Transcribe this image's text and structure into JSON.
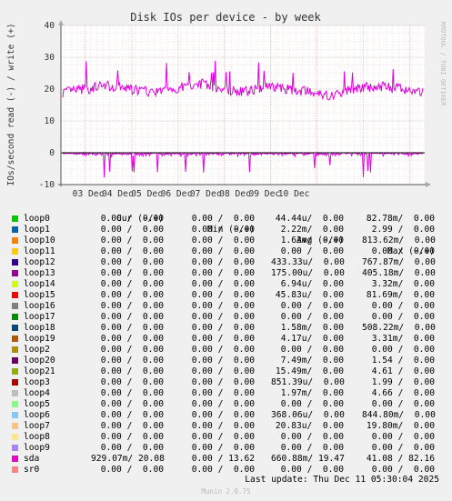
{
  "chart_data": {
    "type": "line",
    "title": "Disk IOs per device - by week",
    "ylabel": "IOs/second read (-) / write (+)",
    "side_label": "RRDTOOL / TOBI OETIKER",
    "ylim": [
      -10,
      40
    ],
    "yticks": [
      -10,
      0,
      10,
      20,
      30,
      40
    ],
    "xticks": [
      "03 Dec",
      "04 Dec",
      "05 Dec",
      "06 Dec",
      "07 Dec",
      "08 Dec",
      "09 Dec",
      "10 Dec"
    ],
    "series": [
      {
        "name": "sda",
        "direction": "write",
        "color": "#e000e0",
        "typical_values": [
          19,
          20,
          21,
          20,
          19,
          20,
          22,
          20,
          19,
          21,
          20,
          19,
          18,
          20,
          21,
          20,
          19
        ],
        "peaks": [
          29,
          27,
          26,
          26,
          29,
          27,
          26
        ]
      },
      {
        "name": "sda",
        "direction": "read",
        "color": "#e000e0",
        "typical_values": [
          -0.5,
          -1,
          -0.3,
          -0.8,
          -0.2,
          -1.2,
          -0.4
        ],
        "troughs": [
          -7,
          -8,
          -9,
          -5,
          -6,
          -7,
          -8
        ]
      }
    ]
  },
  "legend": {
    "header": {
      "cur": "Cur (-/+)",
      "min": "Min (-/+)",
      "avg": "Avg (-/+)",
      "max": "Max (-/+)"
    },
    "rows": [
      {
        "name": "loop0",
        "color": "#00cc00",
        "cur": "0.00 /  0.00",
        "min": "0.00 /  0.00",
        "avg": "44.44u/  0.00",
        "max": "82.78m/  0.00"
      },
      {
        "name": "loop1",
        "color": "#0066b3",
        "cur": "0.00 /  0.00",
        "min": "0.00 /  0.00",
        "avg": "2.22m/  0.00",
        "max": "2.99 /  0.00"
      },
      {
        "name": "loop10",
        "color": "#ff8000",
        "cur": "0.00 /  0.00",
        "min": "0.00 /  0.00",
        "avg": "1.63m/  0.00",
        "max": "813.62m/  0.00"
      },
      {
        "name": "loop11",
        "color": "#ffcc00",
        "cur": "0.00 /  0.00",
        "min": "0.00 /  0.00",
        "avg": "0.00 /  0.00",
        "max": "0.00 /  0.00"
      },
      {
        "name": "loop12",
        "color": "#330099",
        "cur": "0.00 /  0.00",
        "min": "0.00 /  0.00",
        "avg": "433.33u/  0.00",
        "max": "767.87m/  0.00"
      },
      {
        "name": "loop13",
        "color": "#990099",
        "cur": "0.00 /  0.00",
        "min": "0.00 /  0.00",
        "avg": "175.00u/  0.00",
        "max": "405.18m/  0.00"
      },
      {
        "name": "loop14",
        "color": "#ccff00",
        "cur": "0.00 /  0.00",
        "min": "0.00 /  0.00",
        "avg": "6.94u/  0.00",
        "max": "3.32m/  0.00"
      },
      {
        "name": "loop15",
        "color": "#ff0000",
        "cur": "0.00 /  0.00",
        "min": "0.00 /  0.00",
        "avg": "45.83u/  0.00",
        "max": "81.69m/  0.00"
      },
      {
        "name": "loop16",
        "color": "#808080",
        "cur": "0.00 /  0.00",
        "min": "0.00 /  0.00",
        "avg": "0.00 /  0.00",
        "max": "0.00 /  0.00"
      },
      {
        "name": "loop17",
        "color": "#008f00",
        "cur": "0.00 /  0.00",
        "min": "0.00 /  0.00",
        "avg": "0.00 /  0.00",
        "max": "0.00 /  0.00"
      },
      {
        "name": "loop18",
        "color": "#00487d",
        "cur": "0.00 /  0.00",
        "min": "0.00 /  0.00",
        "avg": "1.58m/  0.00",
        "max": "508.22m/  0.00"
      },
      {
        "name": "loop19",
        "color": "#b35a00",
        "cur": "0.00 /  0.00",
        "min": "0.00 /  0.00",
        "avg": "4.17u/  0.00",
        "max": "3.31m/  0.00"
      },
      {
        "name": "loop2",
        "color": "#b38f00",
        "cur": "0.00 /  0.00",
        "min": "0.00 /  0.00",
        "avg": "0.00 /  0.00",
        "max": "0.00 /  0.00"
      },
      {
        "name": "loop20",
        "color": "#6b006b",
        "cur": "0.00 /  0.00",
        "min": "0.00 /  0.00",
        "avg": "7.49m/  0.00",
        "max": "1.54 /  0.00"
      },
      {
        "name": "loop21",
        "color": "#8fb300",
        "cur": "0.00 /  0.00",
        "min": "0.00 /  0.00",
        "avg": "15.49m/  0.00",
        "max": "4.61 /  0.00"
      },
      {
        "name": "loop3",
        "color": "#b30000",
        "cur": "0.00 /  0.00",
        "min": "0.00 /  0.00",
        "avg": "851.39u/  0.00",
        "max": "1.99 /  0.00"
      },
      {
        "name": "loop4",
        "color": "#bebebe",
        "cur": "0.00 /  0.00",
        "min": "0.00 /  0.00",
        "avg": "1.97m/  0.00",
        "max": "4.66 /  0.00"
      },
      {
        "name": "loop5",
        "color": "#80ff80",
        "cur": "0.00 /  0.00",
        "min": "0.00 /  0.00",
        "avg": "0.00 /  0.00",
        "max": "0.00 /  0.00"
      },
      {
        "name": "loop6",
        "color": "#80c9ff",
        "cur": "0.00 /  0.00",
        "min": "0.00 /  0.00",
        "avg": "368.06u/  0.00",
        "max": "844.80m/  0.00"
      },
      {
        "name": "loop7",
        "color": "#ffc080",
        "cur": "0.00 /  0.00",
        "min": "0.00 /  0.00",
        "avg": "20.83u/  0.00",
        "max": "19.80m/  0.00"
      },
      {
        "name": "loop8",
        "color": "#ffe680",
        "cur": "0.00 /  0.00",
        "min": "0.00 /  0.00",
        "avg": "0.00 /  0.00",
        "max": "0.00 /  0.00"
      },
      {
        "name": "loop9",
        "color": "#aa80ff",
        "cur": "0.00 /  0.00",
        "min": "0.00 /  0.00",
        "avg": "0.00 /  0.00",
        "max": "0.00 /  0.00"
      },
      {
        "name": "sda",
        "color": "#ee00cc",
        "cur": "929.07m/ 20.08",
        "min": "0.00 / 13.62",
        "avg": "660.88m/ 19.47",
        "max": "41.08 / 82.16"
      },
      {
        "name": "sr0",
        "color": "#ff8080",
        "cur": "0.00 /  0.00",
        "min": "0.00 /  0.00",
        "avg": "0.00 /  0.00",
        "max": "0.00 /  0.00"
      }
    ]
  },
  "last_update": "Last update: Thu Dec 11 05:30:04 2025",
  "version": "Munin 2.0.75"
}
